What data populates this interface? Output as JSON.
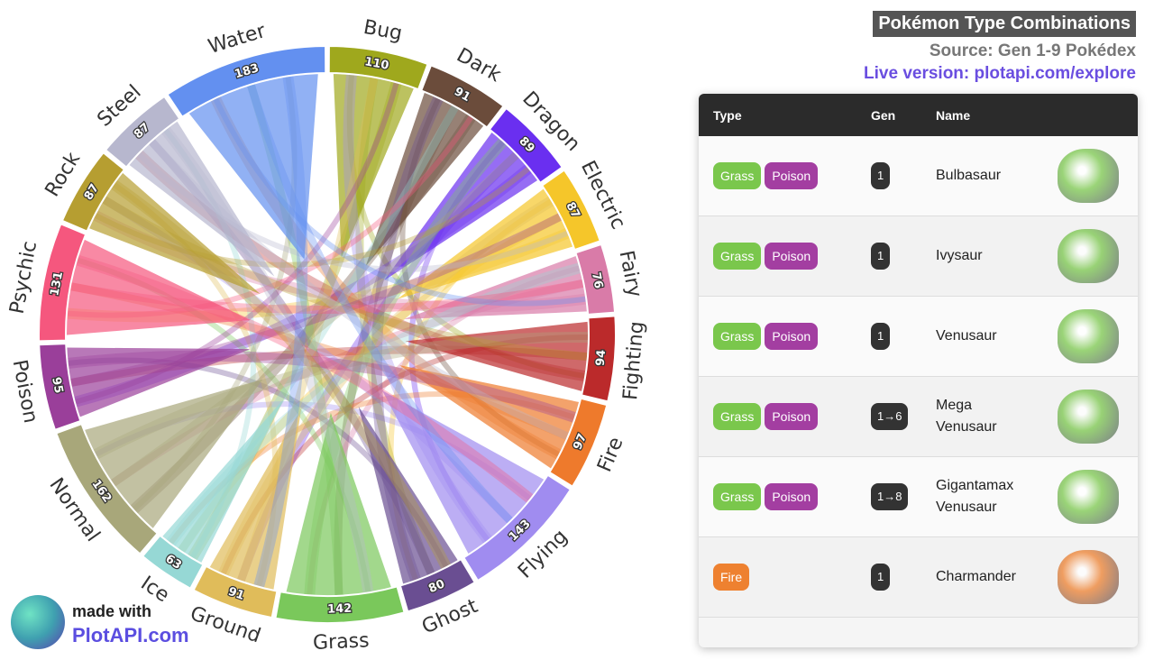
{
  "chart_data": {
    "type": "chord",
    "categories": [
      "Bug",
      "Dark",
      "Dragon",
      "Electric",
      "Fairy",
      "Fighting",
      "Fire",
      "Flying",
      "Ghost",
      "Grass",
      "Ground",
      "Ice",
      "Normal",
      "Poison",
      "Psychic",
      "Rock",
      "Steel",
      "Water"
    ],
    "values": [
      110,
      91,
      89,
      87,
      76,
      94,
      97,
      143,
      80,
      142,
      91,
      63,
      162,
      95,
      131,
      87,
      87,
      183
    ],
    "colors": [
      "#9fa81d",
      "#6b4c3b",
      "#6a2ff0",
      "#f5c62a",
      "#d97ba8",
      "#bb2a2b",
      "#ee7a2c",
      "#a08cf0",
      "#6a4e92",
      "#7ac85b",
      "#e0bc5a",
      "#96d8d5",
      "#a8a77a",
      "#9a3f9a",
      "#f5577e",
      "#b69e31",
      "#b7b7ce",
      "#6390f0"
    ]
  },
  "header": {
    "title": "Pokémon Type Combinations",
    "source": "Source: Gen 1-9 Pokédex",
    "live": "Live version: plotapi.com/explore"
  },
  "table": {
    "columns": [
      "Type",
      "Gen",
      "Name"
    ],
    "rows": [
      {
        "types": [
          {
            "label": "Grass",
            "color": "#7ac74c"
          },
          {
            "label": "Poison",
            "color": "#a33ea1"
          }
        ],
        "gen": "1",
        "name": "Bulbasaur"
      },
      {
        "types": [
          {
            "label": "Grass",
            "color": "#7ac74c"
          },
          {
            "label": "Poison",
            "color": "#a33ea1"
          }
        ],
        "gen": "1",
        "name": "Ivysaur"
      },
      {
        "types": [
          {
            "label": "Grass",
            "color": "#7ac74c"
          },
          {
            "label": "Poison",
            "color": "#a33ea1"
          }
        ],
        "gen": "1",
        "name": "Venusaur"
      },
      {
        "types": [
          {
            "label": "Grass",
            "color": "#7ac74c"
          },
          {
            "label": "Poison",
            "color": "#a33ea1"
          }
        ],
        "gen": "1→6",
        "name": "Mega Venusaur"
      },
      {
        "types": [
          {
            "label": "Grass",
            "color": "#7ac74c"
          },
          {
            "label": "Poison",
            "color": "#a33ea1"
          }
        ],
        "gen": "1→8",
        "name": "Gigantamax Venusaur"
      },
      {
        "types": [
          {
            "label": "Fire",
            "color": "#ee8130"
          }
        ],
        "gen": "1",
        "name": "Charmander"
      }
    ]
  },
  "branding": {
    "made_with": "made with",
    "site": "PlotAPI.com"
  }
}
